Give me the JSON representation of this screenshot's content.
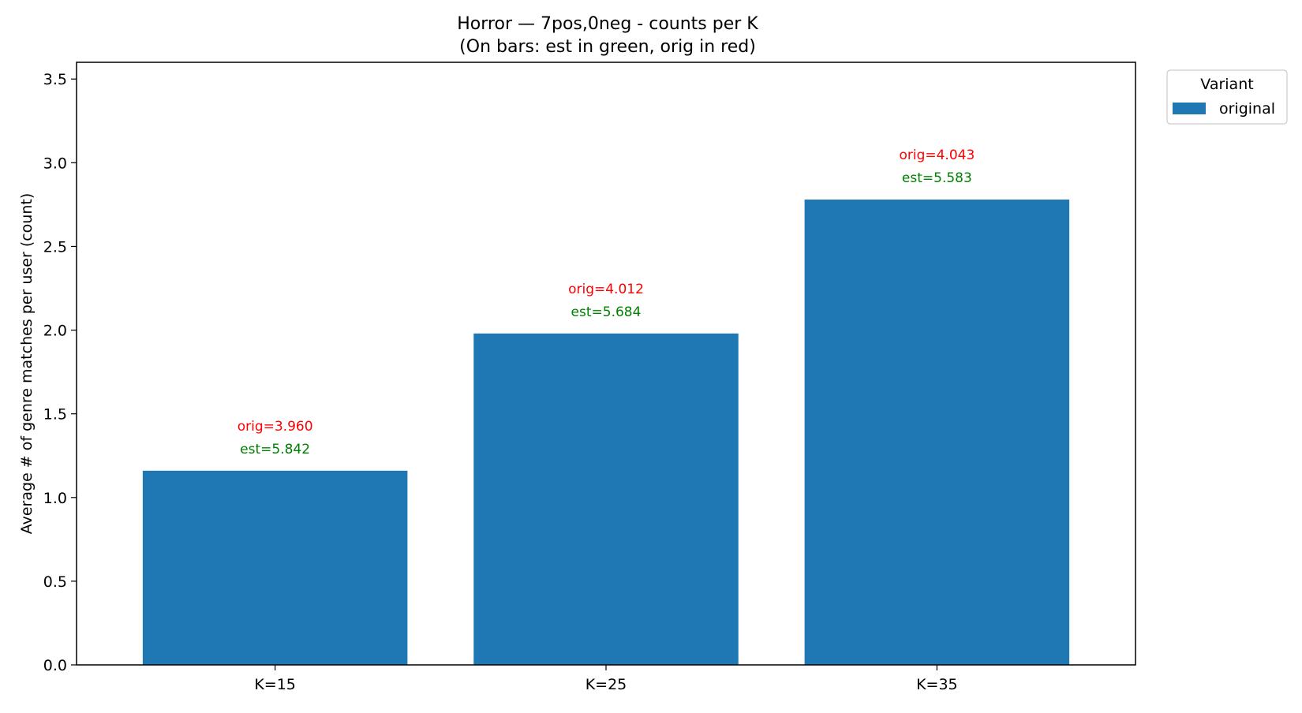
{
  "chart_data": {
    "type": "bar",
    "title": "Horror — 7pos,0neg - counts per K",
    "subtitle": "(On bars: est in green, orig in red)",
    "xlabel": "",
    "ylabel": "Average # of genre matches per user (count)",
    "categories": [
      "K=15",
      "K=25",
      "K=35"
    ],
    "series": [
      {
        "name": "original",
        "color": "#1f77b4",
        "values": [
          1.16,
          1.98,
          2.78
        ]
      }
    ],
    "annotations": {
      "orig": [
        "orig=3.960",
        "orig=4.012",
        "orig=4.043"
      ],
      "est": [
        "est=5.842",
        "est=5.684",
        "est=5.583"
      ],
      "orig_color": "#ff0000",
      "est_color": "#008000"
    },
    "ylim": [
      0,
      3.6
    ],
    "yticks": [
      0.0,
      0.5,
      1.0,
      1.5,
      2.0,
      2.5,
      3.0,
      3.5
    ],
    "ytick_labels": [
      "0.0",
      "0.5",
      "1.0",
      "1.5",
      "2.0",
      "2.5",
      "3.0",
      "3.5"
    ],
    "grid": false,
    "legend": {
      "title": "Variant",
      "placement": "outside-top-right",
      "entries": [
        "original"
      ]
    }
  }
}
